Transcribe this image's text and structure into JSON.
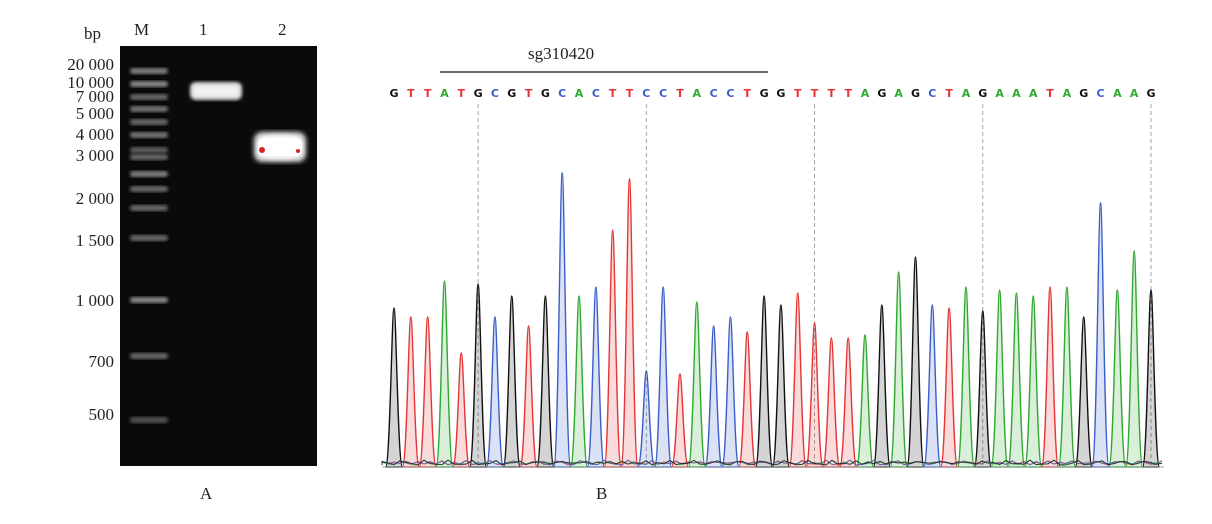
{
  "panel_a": {
    "label": "A",
    "unit_label": "bp",
    "lanes": [
      "M",
      "1",
      "2"
    ],
    "ladder": [
      "20 000",
      "10 000",
      "7 000",
      "5 000",
      "4 000",
      "3 000",
      "2 000",
      "1 500",
      "1 000",
      "700",
      "500"
    ]
  },
  "panel_b": {
    "label": "B",
    "sgrna_label": "sg310420",
    "sequence": [
      "G",
      "T",
      "T",
      "A",
      "T",
      "G",
      "C",
      "G",
      "T",
      "G",
      "C",
      "A",
      "C",
      "T",
      "T",
      "C",
      "C",
      "T",
      "A",
      "C",
      "C",
      "T",
      "G",
      "G",
      "T",
      "T",
      "T",
      "T",
      "A",
      "G",
      "A",
      "G",
      "C",
      "T",
      "A",
      "G",
      "A",
      "A",
      "A",
      "T",
      "A",
      "G",
      "C",
      "A",
      "A",
      "G"
    ],
    "peak_heights": [
      0.53,
      0.5,
      0.5,
      0.62,
      0.38,
      0.61,
      0.5,
      0.57,
      0.47,
      0.57,
      0.98,
      0.57,
      0.6,
      0.79,
      0.96,
      0.32,
      0.6,
      0.31,
      0.55,
      0.47,
      0.5,
      0.45,
      0.57,
      0.54,
      0.58,
      0.48,
      0.43,
      0.43,
      0.44,
      0.54,
      0.65,
      0.7,
      0.54,
      0.53,
      0.6,
      0.52,
      0.59,
      0.58,
      0.57,
      0.6,
      0.6,
      0.5,
      0.88,
      0.59,
      0.72,
      0.59
    ],
    "base_colors": {
      "G": "#111111",
      "A": "#2fa82f",
      "T": "#e53535",
      "C": "#3b5ec9"
    }
  }
}
